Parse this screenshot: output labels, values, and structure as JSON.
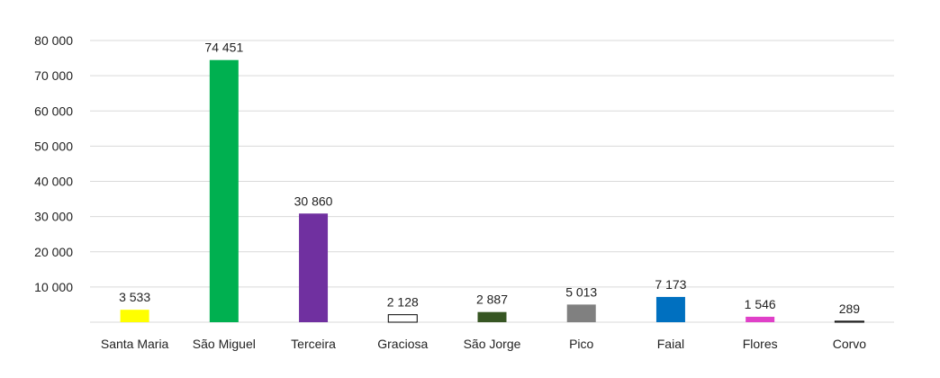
{
  "chart_data": {
    "type": "bar",
    "title": "",
    "xlabel": "",
    "ylabel": "",
    "ylim": [
      0,
      80000
    ],
    "yticks": [
      10000,
      20000,
      30000,
      40000,
      50000,
      60000,
      70000,
      80000
    ],
    "ytick_labels": [
      "10 000",
      "20 000",
      "30 000",
      "40 000",
      "50 000",
      "60 000",
      "70 000",
      "80 000"
    ],
    "grid": true,
    "legend": "none",
    "categories": [
      "Santa Maria",
      "São Miguel",
      "Terceira",
      "Graciosa",
      "São Jorge",
      "Pico",
      "Faial",
      "Flores",
      "Corvo"
    ],
    "values": [
      3533,
      74451,
      30860,
      2128,
      2887,
      5013,
      7173,
      1546,
      289
    ],
    "value_labels": [
      "3 533",
      "74 451",
      "30 860",
      "2 128",
      "2 887",
      "5 013",
      "7 173",
      "1 546",
      "289"
    ],
    "colors": [
      "#ffff00",
      "#00b050",
      "#7030a0",
      "#ffffff",
      "#375623",
      "#808080",
      "#0070c0",
      "#e040c8",
      "#ffffff"
    ],
    "outline_colors": [
      "none",
      "none",
      "none",
      "#000000",
      "none",
      "none",
      "none",
      "none",
      "#000000"
    ]
  }
}
